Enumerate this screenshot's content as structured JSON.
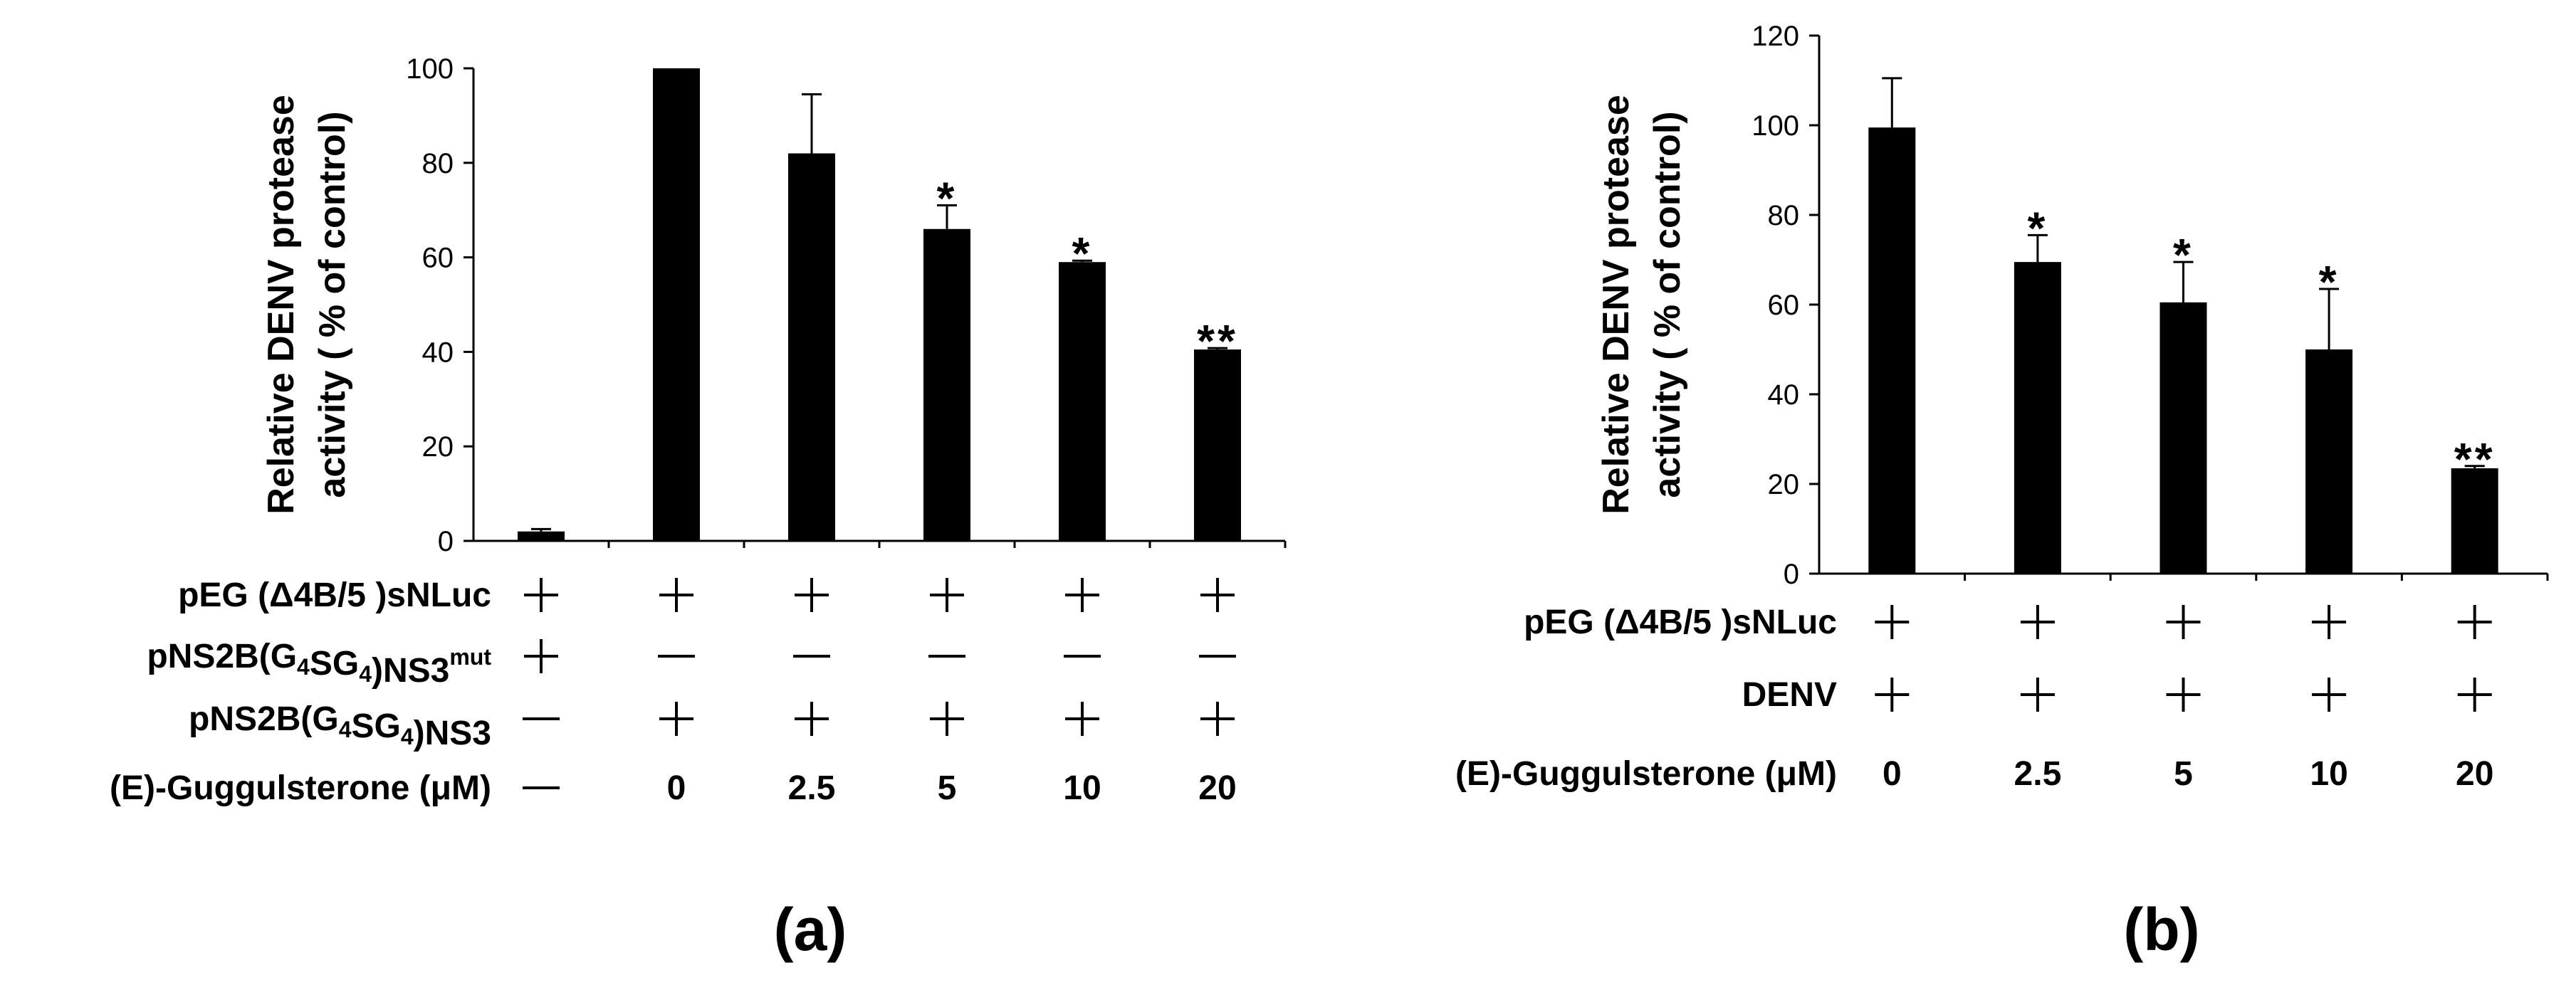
{
  "chart_data": [
    {
      "type": "bar",
      "panel_label": "(a)",
      "ylabel_line1": "Relative DENV protease",
      "ylabel_line2": "activity ( % of control)",
      "ylim": [
        0,
        100
      ],
      "yticks": [
        0,
        20,
        40,
        60,
        80,
        100
      ],
      "values": [
        2,
        100,
        82,
        66,
        59,
        40.5
      ],
      "errors": [
        0.5,
        0,
        12.5,
        5,
        0.3,
        0.3
      ],
      "significance": [
        "",
        "",
        "",
        "*",
        "*",
        "**"
      ],
      "condition_rows": [
        {
          "label_main": "pEG (Δ4B/5 )sNLuc",
          "label_sub": "",
          "label_sup": "",
          "marks": [
            "+",
            "+",
            "+",
            "+",
            "+",
            "+"
          ]
        },
        {
          "label_main": "pNS2B(G",
          "label_sub": "4",
          "label_mid": "SG",
          "label_sub2": "4",
          "label_end": ")NS3",
          "label_sup": "mut",
          "marks": [
            "+",
            "—",
            "—",
            "—",
            "—",
            "—"
          ]
        },
        {
          "label_main": "pNS2B(G",
          "label_sub": "4",
          "label_mid": "SG",
          "label_sub2": "4",
          "label_end": ")NS3",
          "label_sup": "",
          "marks": [
            "—",
            "+",
            "+",
            "+",
            "+",
            "+"
          ]
        },
        {
          "label_main": "(E)-Guggulsterone (μM)",
          "label_sub": "",
          "label_sup": "",
          "marks": [
            "—",
            "0",
            "2.5",
            "5",
            "10",
            "20"
          ]
        }
      ]
    },
    {
      "type": "bar",
      "panel_label": "(b)",
      "ylabel_line1": "Relative DENV protease",
      "ylabel_line2": "activity ( % of control)",
      "ylim": [
        0,
        120
      ],
      "yticks": [
        0,
        20,
        40,
        60,
        80,
        100,
        120
      ],
      "values": [
        99.5,
        69.5,
        60.5,
        50,
        23.5
      ],
      "errors": [
        11,
        6,
        9,
        13.5,
        0.5
      ],
      "significance": [
        "",
        "*",
        "*",
        "*",
        "**"
      ],
      "condition_rows": [
        {
          "label_main": "pEG (Δ4B/5 )sNLuc",
          "marks": [
            "+",
            "+",
            "+",
            "+",
            "+"
          ]
        },
        {
          "label_main": "DENV",
          "marks": [
            "+",
            "+",
            "+",
            "+",
            "+"
          ]
        },
        {
          "label_main": "(E)-Guggulsterone (μM)",
          "marks": [
            "0",
            "2.5",
            "5",
            "10",
            "20"
          ]
        }
      ]
    }
  ]
}
